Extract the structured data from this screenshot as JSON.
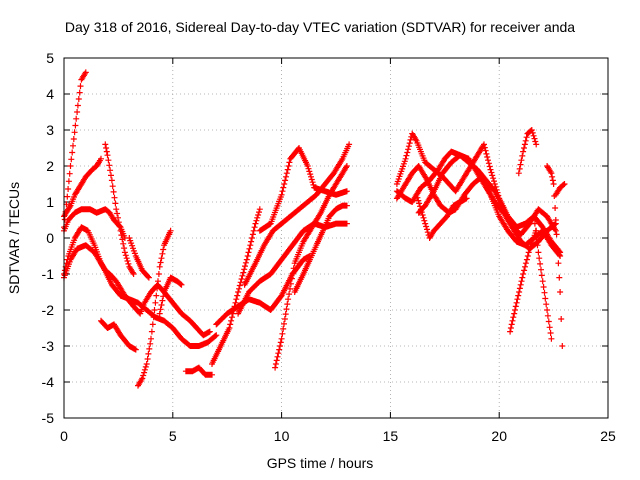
{
  "chart_data": {
    "type": "scatter",
    "title": "Day 318 of 2016, Sidereal Day-to-day VTEC variation (SDTVAR) for receiver anda",
    "xlabel": "GPS time / hours",
    "ylabel": "SDTVAR / TECUs",
    "xlim": [
      0,
      25
    ],
    "ylim": [
      -5,
      5
    ],
    "xticks": [
      0,
      5,
      10,
      15,
      20,
      25
    ],
    "yticks": [
      -5,
      -4,
      -3,
      -2,
      -1,
      0,
      1,
      2,
      3,
      4,
      5
    ],
    "grid": true,
    "marker": "+",
    "color": "#ff0000",
    "series": [
      {
        "name": "s1",
        "x": [
          0,
          0.3,
          0.6,
          0.8,
          1.0
        ],
        "y": [
          0.3,
          2.0,
          3.5,
          4.4,
          4.6
        ]
      },
      {
        "name": "s2",
        "x": [
          0,
          0.3,
          0.5,
          0.8,
          1.0,
          1.3,
          1.5,
          1.6,
          1.7
        ],
        "y": [
          0.6,
          0.9,
          1.2,
          1.5,
          1.7,
          1.9,
          2.0,
          2.1,
          2.2
        ]
      },
      {
        "name": "s3",
        "x": [
          0,
          0.2,
          0.5,
          0.8,
          1.2,
          1.5,
          1.9,
          2.1,
          2.3,
          2.6,
          2.8
        ],
        "y": [
          0.2,
          0.5,
          0.7,
          0.8,
          0.8,
          0.7,
          0.8,
          0.7,
          0.5,
          0.3,
          0.0
        ]
      },
      {
        "name": "s4",
        "x": [
          0,
          0.2,
          0.5,
          0.8,
          1.1,
          1.4,
          1.7,
          1.9,
          2.1,
          2.4,
          2.8,
          3.2,
          3.5,
          3.7,
          4.0,
          4.3,
          4.6,
          5.0,
          5.4,
          5.8,
          6.1,
          6.4,
          6.7
        ],
        "y": [
          -1.0,
          -0.5,
          0.0,
          0.3,
          0.2,
          -0.2,
          -0.7,
          -0.9,
          -1.0,
          -1.2,
          -1.6,
          -1.9,
          -2.1,
          -1.8,
          -1.5,
          -1.3,
          -1.5,
          -1.8,
          -2.1,
          -2.3,
          -2.5,
          -2.7,
          -2.6
        ]
      },
      {
        "name": "s5",
        "x": [
          0,
          0.3,
          0.6,
          1.0,
          1.4,
          1.8,
          2.2,
          2.6,
          3.0,
          3.4,
          3.8,
          4.2,
          4.6,
          5.0,
          5.4,
          5.8,
          6.2,
          6.6,
          7.0
        ],
        "y": [
          -1.1,
          -0.6,
          -0.3,
          -0.2,
          -0.4,
          -0.8,
          -1.3,
          -1.6,
          -1.7,
          -1.8,
          -2.0,
          -2.2,
          -2.3,
          -2.5,
          -2.8,
          -3.0,
          -3.0,
          -2.9,
          -2.7
        ]
      },
      {
        "name": "s6",
        "x": [
          1.9,
          2.0,
          2.2,
          2.4,
          2.6,
          2.8,
          3.0,
          3.2
        ],
        "y": [
          2.6,
          2.3,
          1.6,
          0.8,
          0.2,
          -0.4,
          -0.8,
          -1.0
        ]
      },
      {
        "name": "s7",
        "x": [
          3.0,
          3.3,
          3.6,
          3.9
        ],
        "y": [
          0.0,
          -0.5,
          -0.9,
          -1.1
        ]
      },
      {
        "name": "s8",
        "x": [
          1.7,
          2.0,
          2.3,
          2.6,
          3.0,
          3.3
        ],
        "y": [
          -2.3,
          -2.5,
          -2.4,
          -2.7,
          -3.0,
          -3.1
        ]
      },
      {
        "name": "s9",
        "x": [
          3.4,
          3.6,
          3.8,
          4.0,
          4.2,
          4.4,
          4.6,
          4.9
        ],
        "y": [
          -4.1,
          -3.9,
          -3.5,
          -2.8,
          -1.8,
          -0.8,
          -0.2,
          0.2
        ]
      },
      {
        "name": "s10",
        "x": [
          4.4,
          4.6,
          4.9,
          5.2,
          5.4
        ],
        "y": [
          -2.1,
          -1.5,
          -1.1,
          -1.2,
          -1.3
        ]
      },
      {
        "name": "s11",
        "x": [
          5.6,
          5.9,
          6.2,
          6.5,
          6.8
        ],
        "y": [
          -3.7,
          -3.7,
          -3.6,
          -3.8,
          -3.8
        ]
      },
      {
        "name": "s12",
        "x": [
          6.8,
          7.2,
          7.6,
          8.0,
          8.4,
          8.8,
          9.0
        ],
        "y": [
          -3.5,
          -3.0,
          -2.5,
          -1.5,
          -0.6,
          0.4,
          0.8
        ]
      },
      {
        "name": "s13",
        "x": [
          7.0,
          7.5,
          8.0,
          8.5,
          9.0,
          9.5,
          10.0,
          10.5,
          11.0,
          11.3
        ],
        "y": [
          -2.4,
          -2.1,
          -1.9,
          -1.7,
          -1.8,
          -2.0,
          -1.6,
          -1.0,
          -0.6,
          -0.5
        ]
      },
      {
        "name": "s14",
        "x": [
          8.0,
          8.5,
          9.0,
          9.5,
          10.0,
          10.5,
          11.0,
          11.5,
          12.0,
          12.5,
          13.0
        ],
        "y": [
          -2.1,
          -1.5,
          -1.2,
          -1.0,
          -0.6,
          -0.2,
          0.2,
          0.4,
          0.3,
          0.4,
          0.4
        ]
      },
      {
        "name": "s15",
        "x": [
          8.3,
          8.8,
          9.2,
          9.6,
          10.0,
          10.4,
          10.8,
          11.2,
          11.6,
          12.0,
          12.4,
          12.8,
          13.1
        ],
        "y": [
          -1.3,
          -0.7,
          -0.2,
          0.2,
          0.4,
          0.6,
          0.8,
          1.0,
          1.2,
          1.5,
          1.8,
          2.2,
          2.6
        ]
      },
      {
        "name": "s16",
        "x": [
          9.0,
          9.5,
          10.0,
          10.4,
          10.8,
          11.2,
          11.5,
          12.0,
          12.5,
          13.0
        ],
        "y": [
          0.2,
          0.4,
          1.2,
          2.2,
          2.5,
          2.0,
          1.4,
          1.3,
          1.2,
          1.3
        ]
      },
      {
        "name": "s17",
        "x": [
          9.7,
          10.0,
          10.3,
          10.6,
          11.0,
          11.4,
          11.8,
          12.2,
          12.6,
          13.0
        ],
        "y": [
          -3.6,
          -2.8,
          -1.7,
          -0.7,
          -0.1,
          0.3,
          0.7,
          1.2,
          1.6,
          2.0
        ]
      },
      {
        "name": "s18",
        "x": [
          10.6,
          11.0,
          11.3,
          11.6,
          11.9,
          12.2,
          12.5,
          12.8,
          13.0
        ],
        "y": [
          -1.5,
          -1.0,
          -0.6,
          -0.2,
          0.2,
          0.6,
          0.8,
          0.9,
          0.9
        ]
      },
      {
        "name": "s19",
        "x": [
          15.3,
          15.7,
          16.0,
          16.2,
          16.6,
          17.0,
          17.4,
          17.7,
          18.0,
          18.4,
          18.7,
          19.0,
          19.3,
          19.6,
          20.0,
          20.4,
          20.8,
          21.2,
          21.6,
          22.0,
          22.4,
          22.8
        ],
        "y": [
          1.5,
          2.2,
          2.9,
          2.7,
          2.1,
          1.9,
          1.7,
          1.5,
          1.3,
          1.7,
          2.0,
          2.3,
          2.6,
          1.9,
          1.1,
          0.6,
          0.3,
          0.4,
          0.6,
          0.3,
          -0.1,
          -0.4
        ]
      },
      {
        "name": "s20",
        "x": [
          15.3,
          15.7,
          16.0,
          16.3,
          16.7,
          17.0,
          17.3,
          17.7,
          18.0,
          18.4,
          18.8,
          19.2,
          19.6,
          20.0,
          20.4,
          20.8,
          21.2,
          21.6,
          22.0,
          22.4,
          22.8
        ],
        "y": [
          1.1,
          1.5,
          1.8,
          2.0,
          1.6,
          1.2,
          0.9,
          0.7,
          0.8,
          1.2,
          1.5,
          1.7,
          1.2,
          0.6,
          0.2,
          -0.1,
          -0.2,
          0.0,
          0.2,
          -0.2,
          -0.5
        ]
      },
      {
        "name": "s21",
        "x": [
          15.3,
          15.7,
          16.0,
          16.4,
          16.8,
          17.2,
          17.5,
          17.8,
          18.2,
          18.6,
          19.0,
          19.4,
          19.8,
          20.2,
          20.6,
          21.0,
          21.4,
          21.8,
          22.2,
          22.6
        ],
        "y": [
          1.3,
          1.1,
          1.0,
          1.4,
          1.6,
          1.9,
          2.2,
          2.4,
          2.3,
          2.1,
          1.9,
          1.6,
          1.3,
          0.8,
          0.3,
          0.1,
          0.4,
          0.8,
          0.6,
          0.2
        ]
      },
      {
        "name": "s22",
        "x": [
          16.3,
          16.6,
          17.0,
          17.4,
          17.8,
          18.2,
          18.6,
          19.0,
          19.4,
          19.8,
          20.2,
          20.6,
          21.0,
          21.4,
          21.8,
          22.2,
          22.6
        ],
        "y": [
          0.7,
          0.9,
          1.3,
          1.8,
          2.1,
          2.3,
          2.2,
          1.8,
          1.4,
          1.0,
          0.7,
          0.3,
          -0.1,
          -0.3,
          -0.1,
          0.2,
          0.4
        ]
      },
      {
        "name": "s23",
        "x": [
          16.2,
          16.4,
          16.6,
          16.8,
          17.0,
          17.3,
          17.6,
          17.9,
          18.2,
          18.5
        ],
        "y": [
          1.2,
          0.8,
          0.4,
          0.0,
          0.2,
          0.4,
          0.6,
          0.9,
          1.0,
          1.1
        ]
      },
      {
        "name": "s24",
        "x": [
          20.9,
          21.1,
          21.3,
          21.5,
          21.7
        ],
        "y": [
          1.8,
          2.4,
          2.9,
          3.0,
          2.6
        ]
      },
      {
        "name": "s25",
        "x": [
          20.5,
          20.8,
          21.1,
          21.4,
          21.7
        ],
        "y": [
          -2.6,
          -1.8,
          -1.0,
          -0.3,
          0.2
        ]
      },
      {
        "name": "s26",
        "x": [
          21.6,
          21.8,
          22.0,
          22.2,
          22.4
        ],
        "y": [
          0.6,
          -0.4,
          -1.2,
          -2.0,
          -2.8
        ]
      },
      {
        "name": "s27",
        "x": [
          22.2,
          22.4,
          22.5,
          22.6,
          22.8,
          22.9
        ],
        "y": [
          2.0,
          1.8,
          1.5,
          0.5,
          -1.5,
          -3.0
        ]
      },
      {
        "name": "s28",
        "x": [
          22.6,
          22.8,
          23.0
        ],
        "y": [
          1.2,
          1.4,
          1.5
        ]
      }
    ]
  }
}
